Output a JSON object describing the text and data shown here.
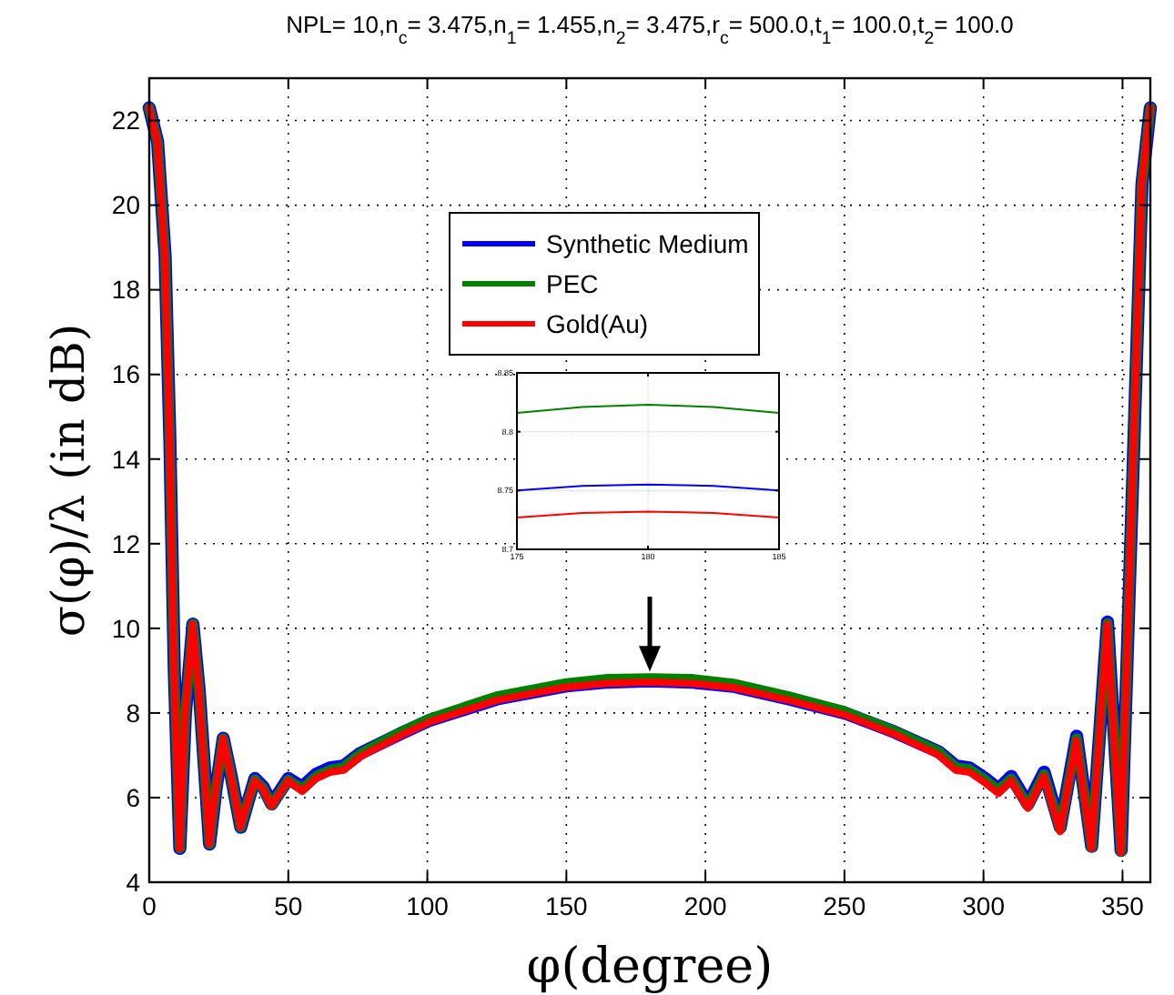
{
  "chart_data": [
    {
      "type": "line",
      "title": "NPL= 10,n$_{c}$=  3.475,n$_{1}$= 1.455,n$_{2}$= 3.475,r$_{c}$= 500.0,t$_{1}$= 100.0,t$_{2}$= 100.0",
      "xlabel": "φ(degree)",
      "ylabel": "σ(φ)/λ (in dB)",
      "x": [
        0,
        3,
        5.7,
        7.4,
        9,
        11,
        13,
        15.7,
        18,
        21.7,
        24,
        26.6,
        29.5,
        32.9,
        35.5,
        38,
        41,
        44,
        47,
        50,
        55,
        60,
        65,
        70,
        76,
        90,
        101,
        125,
        150,
        165,
        180,
        195,
        210,
        230,
        250,
        268,
        284,
        290,
        295,
        300.6,
        305.4,
        310,
        316,
        321.8,
        327.6,
        333.5,
        338.9,
        344.6,
        349.5,
        352,
        354.8,
        357,
        360
      ],
      "series": [
        {
          "name": "Synthetic Medium",
          "color": "#0000ff",
          "values": [
            22.3,
            21.5,
            18.8,
            14.5,
            9,
            4.8,
            8,
            10.1,
            8.5,
            4.9,
            6.2,
            7.4,
            6.5,
            5.3,
            5.9,
            6.45,
            6.25,
            5.85,
            6.15,
            6.45,
            6.25,
            6.55,
            6.7,
            6.75,
            7.05,
            7.5,
            7.83,
            8.33,
            8.64,
            8.73,
            8.76,
            8.73,
            8.63,
            8.33,
            8.0,
            7.55,
            7.08,
            6.75,
            6.7,
            6.45,
            6.2,
            6.5,
            5.85,
            6.6,
            5.3,
            7.45,
            4.85,
            10.15,
            4.75,
            10,
            15.9,
            20.5,
            22.3
          ]
        },
        {
          "name": "PEC",
          "color": "#008000",
          "values": [
            22.3,
            21.5,
            18.8,
            14.5,
            9,
            4.8,
            8,
            10.1,
            8.5,
            4.9,
            6.2,
            7.4,
            6.5,
            5.3,
            5.9,
            6.42,
            6.22,
            5.82,
            6.12,
            6.42,
            6.2,
            6.5,
            6.65,
            6.72,
            7.04,
            7.53,
            7.87,
            8.39,
            8.7,
            8.8,
            8.82,
            8.8,
            8.69,
            8.39,
            8.04,
            7.57,
            7.08,
            6.72,
            6.67,
            6.42,
            6.17,
            6.45,
            5.8,
            6.55,
            5.25,
            7.4,
            4.82,
            10.12,
            4.72,
            10,
            15.9,
            20.5,
            22.3
          ]
        },
        {
          "name": "Gold(Au)",
          "color": "#ff0000",
          "values": [
            22.3,
            21.5,
            18.8,
            14.5,
            9,
            4.8,
            8,
            10.1,
            8.5,
            4.9,
            6.2,
            7.4,
            6.5,
            5.3,
            5.9,
            6.4,
            6.2,
            5.8,
            6.1,
            6.4,
            6.15,
            6.45,
            6.6,
            6.65,
            6.97,
            7.45,
            7.79,
            8.3,
            8.61,
            8.7,
            8.73,
            8.7,
            8.6,
            8.3,
            7.96,
            7.5,
            7.0,
            6.65,
            6.6,
            6.35,
            6.1,
            6.4,
            5.75,
            6.5,
            5.2,
            7.35,
            4.8,
            10.1,
            4.7,
            10,
            15.9,
            20.5,
            22.3
          ]
        }
      ],
      "xlim": [
        0,
        360
      ],
      "xticks": [
        0,
        50,
        100,
        150,
        200,
        250,
        300,
        350
      ],
      "ylim": [
        4,
        23
      ],
      "yticks": [
        4,
        6,
        8,
        10,
        12,
        14,
        16,
        18,
        20,
        22
      ],
      "grid": true,
      "legend": "top"
    },
    {
      "type": "line",
      "x": [
        175,
        177.5,
        180,
        182.5,
        185
      ],
      "series": [
        {
          "color": "#008000",
          "values": [
            8.816,
            8.821,
            8.823,
            8.821,
            8.816
          ]
        },
        {
          "color": "#0000ff",
          "values": [
            8.75,
            8.754,
            8.755,
            8.754,
            8.75
          ]
        },
        {
          "color": "#ff0000",
          "values": [
            8.727,
            8.731,
            8.732,
            8.731,
            8.727
          ]
        }
      ],
      "xlim": [
        175,
        185
      ],
      "xticks": [
        175,
        180,
        185
      ],
      "ylim": [
        8.7,
        8.85
      ],
      "yticks": [
        8.7,
        8.75,
        8.8,
        8.85
      ],
      "grid": true
    }
  ]
}
